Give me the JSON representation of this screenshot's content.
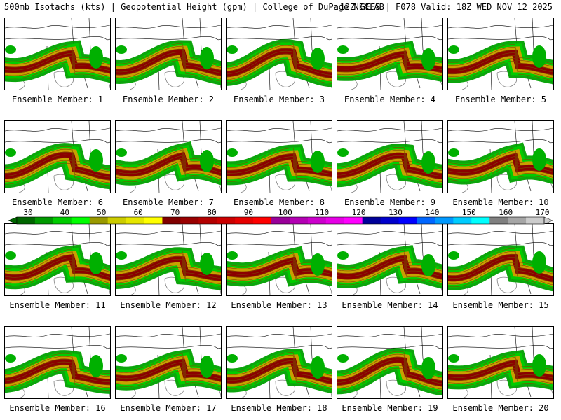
{
  "header": {
    "left": "500mb Isotachs (kts) | Geopotential Height (gpm) | College of DuPage NEXLAB",
    "right": "12Z GEFS | F078 Valid: 18Z WED NOV 12 2025"
  },
  "panels": [
    {
      "label": "Ensemble Member: 1",
      "member": 1
    },
    {
      "label": "Ensemble Member: 2",
      "member": 2
    },
    {
      "label": "Ensemble Member: 3",
      "member": 3
    },
    {
      "label": "Ensemble Member: 4",
      "member": 4
    },
    {
      "label": "Ensemble Member: 5",
      "member": 5
    },
    {
      "label": "Ensemble Member: 6",
      "member": 6
    },
    {
      "label": "Ensemble Member: 7",
      "member": 7
    },
    {
      "label": "Ensemble Member: 8",
      "member": 8
    },
    {
      "label": "Ensemble Member: 9",
      "member": 9
    },
    {
      "label": "Ensemble Member: 10",
      "member": 10
    },
    {
      "label": "Ensemble Member: 11",
      "member": 11
    },
    {
      "label": "Ensemble Member: 12",
      "member": 12
    },
    {
      "label": "Ensemble Member: 13",
      "member": 13
    },
    {
      "label": "Ensemble Member: 14",
      "member": 14
    },
    {
      "label": "Ensemble Member: 15",
      "member": 15
    },
    {
      "label": "Ensemble Member: 16",
      "member": 16
    },
    {
      "label": "Ensemble Member: 17",
      "member": 17
    },
    {
      "label": "Ensemble Member: 18",
      "member": 18
    },
    {
      "label": "Ensemble Member: 19",
      "member": 19
    },
    {
      "label": "Ensemble Member: 20",
      "member": 20
    }
  ],
  "colorbar": {
    "labels": [
      "30",
      "40",
      "50",
      "60",
      "70",
      "80",
      "90",
      "100",
      "110",
      "120",
      "130",
      "140",
      "150",
      "160",
      "170"
    ],
    "colors": [
      "#006600",
      "#009900",
      "#00cc00",
      "#00ff00",
      "#999900",
      "#cccc00",
      "#e6e600",
      "#ffff00",
      "#800000",
      "#990000",
      "#b30000",
      "#cc0000",
      "#e60000",
      "#ff0000",
      "#990099",
      "#b300b3",
      "#cc00cc",
      "#e600e6",
      "#ff00ff",
      "#000099",
      "#0000cc",
      "#0000ff",
      "#0066ff",
      "#0099ff",
      "#00ccff",
      "#00ffff",
      "#808080",
      "#a6a6a6",
      "#cccccc"
    ]
  },
  "legend": {
    "units": "kts"
  },
  "colors": {
    "jet_fast": "#8b0000",
    "jet_mid": "#c8a000",
    "jet_slow": "#00a000",
    "contour": "#7a4a00",
    "coast": "#000000",
    "lake": "#808080"
  }
}
